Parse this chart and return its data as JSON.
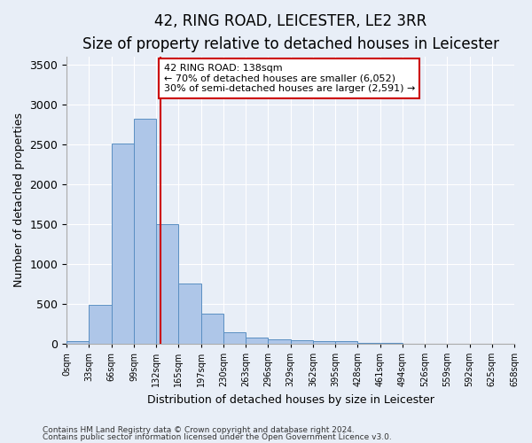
{
  "title": "42, RING ROAD, LEICESTER, LE2 3RR",
  "subtitle": "Size of property relative to detached houses in Leicester",
  "xlabel": "Distribution of detached houses by size in Leicester",
  "ylabel": "Number of detached properties",
  "bin_labels": [
    "0sqm",
    "33sqm",
    "66sqm",
    "99sqm",
    "132sqm",
    "165sqm",
    "197sqm",
    "230sqm",
    "263sqm",
    "296sqm",
    "329sqm",
    "362sqm",
    "395sqm",
    "428sqm",
    "461sqm",
    "494sqm",
    "526sqm",
    "559sqm",
    "592sqm",
    "625sqm",
    "658sqm"
  ],
  "bar_heights": [
    30,
    490,
    2510,
    2820,
    1500,
    750,
    380,
    145,
    75,
    50,
    45,
    35,
    30,
    5,
    3,
    2,
    2,
    1,
    1,
    0
  ],
  "bar_color": "#aec6e8",
  "bar_edge_color": "#5a8fc2",
  "property_line_x": 138,
  "bin_width": 33,
  "ylim": [
    0,
    3600
  ],
  "annotation_text": "42 RING ROAD: 138sqm\n← 70% of detached houses are smaller (6,052)\n30% of semi-detached houses are larger (2,591) →",
  "annotation_box_color": "#ffffff",
  "annotation_box_edge": "#cc0000",
  "vertical_line_color": "#cc0000",
  "background_color": "#e8eef7",
  "plot_background": "#e8eef7",
  "footer_line1": "Contains HM Land Registry data © Crown copyright and database right 2024.",
  "footer_line2": "Contains public sector information licensed under the Open Government Licence v3.0.",
  "title_fontsize": 12,
  "subtitle_fontsize": 10,
  "ylabel_fontsize": 9,
  "xlabel_fontsize": 9
}
